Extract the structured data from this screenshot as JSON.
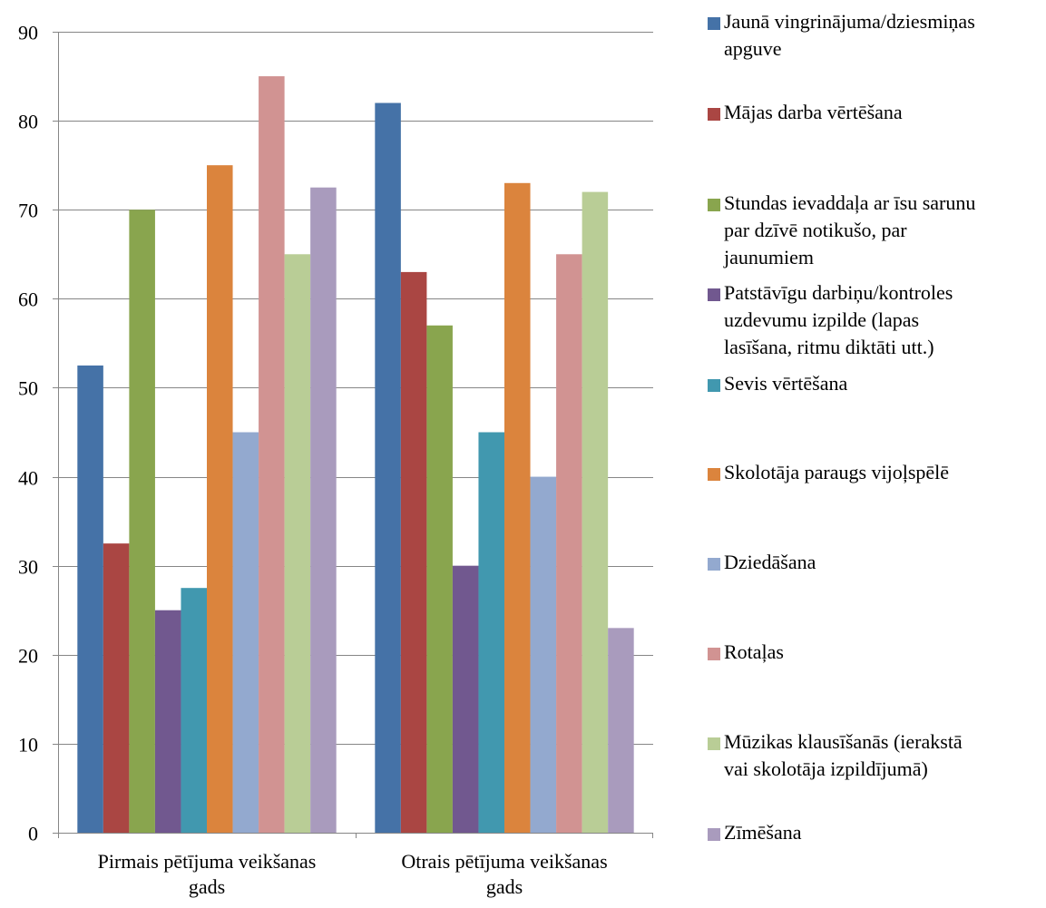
{
  "chart_data": {
    "type": "bar",
    "title": "",
    "xlabel": "",
    "ylabel": "",
    "ylim": [
      0,
      90
    ],
    "yticks": [
      0,
      10,
      20,
      30,
      40,
      50,
      60,
      70,
      80,
      90
    ],
    "grid": true,
    "legend_position": "right",
    "categories": [
      [
        "Pirmais pētījuma veikšanas",
        "gads"
      ],
      [
        "Otrais pētījuma veikšanas",
        "gads"
      ]
    ],
    "series": [
      {
        "name": [
          "Jaunā vingrinājuma/dziesmiņas",
          "apguve"
        ],
        "color": "#4572A7",
        "values": [
          52.5,
          82
        ]
      },
      {
        "name": [
          "Mājas darba vērtēšana"
        ],
        "color": "#AA4643",
        "values": [
          32.5,
          63
        ]
      },
      {
        "name": [
          "Stundas ievaddaļa ar īsu sarunu",
          "par dzīvē notikušo, par",
          "jaunumiem"
        ],
        "color": "#89A54E",
        "values": [
          70,
          57
        ]
      },
      {
        "name": [
          "Patstāvīgu darbiņu/kontroles",
          "uzdevumu izpilde (lapas",
          "lasīšana, ritmu diktāti utt.)"
        ],
        "color": "#71588F",
        "values": [
          25,
          30
        ]
      },
      {
        "name": [
          "Sevis vērtēšana"
        ],
        "color": "#4198AF",
        "values": [
          27.5,
          45
        ]
      },
      {
        "name": [
          "Skolotāja paraugs vijoļspēlē"
        ],
        "color": "#DB843D",
        "values": [
          75,
          73
        ]
      },
      {
        "name": [
          "Dziedāšana"
        ],
        "color": "#93A9CF",
        "values": [
          45,
          40
        ]
      },
      {
        "name": [
          "Rotaļas"
        ],
        "color": "#D19392",
        "values": [
          85,
          65
        ]
      },
      {
        "name": [
          "Mūzikas klausīšanās (ierakstā",
          "vai skolotāja izpildījumā)"
        ],
        "color": "#B9CD96",
        "values": [
          65,
          72
        ]
      },
      {
        "name": [
          "Zīmēšana"
        ],
        "color": "#A99BBD",
        "values": [
          72.5,
          23
        ]
      }
    ]
  }
}
